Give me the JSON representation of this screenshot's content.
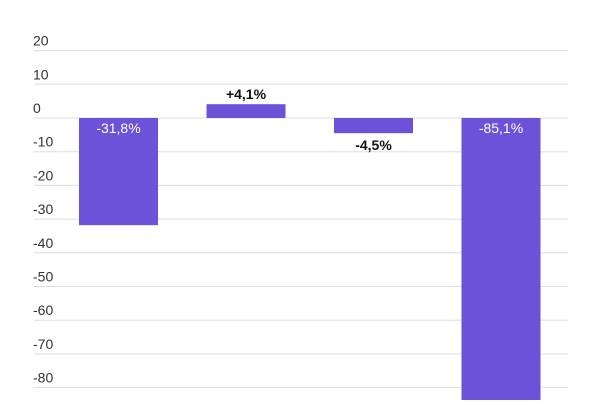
{
  "chart_data": {
    "type": "bar",
    "categories": [
      "",
      "",
      "",
      ""
    ],
    "values": [
      -31.8,
      4.1,
      -4.5,
      -85.1
    ],
    "data_labels": [
      "-31,8%",
      "+4,1%",
      "-4,5%",
      "-85,1%"
    ],
    "y_ticks": [
      "20",
      "10",
      "0",
      "-10",
      "-20",
      "-30",
      "-40",
      "-50",
      "-60",
      "-70",
      "-80"
    ],
    "y_tick_values": [
      20,
      10,
      0,
      -10,
      -20,
      -30,
      -40,
      -50,
      -60,
      -70,
      -80
    ],
    "ylim": [
      -84,
      24
    ],
    "grid": true,
    "title": "",
    "xlabel": "",
    "ylabel": ""
  },
  "colors": {
    "bar": "#6c52d9",
    "grid": "#dddddd",
    "tick_text": "#333333",
    "label_inside": "#ffffff",
    "label_outside": "#111111"
  }
}
